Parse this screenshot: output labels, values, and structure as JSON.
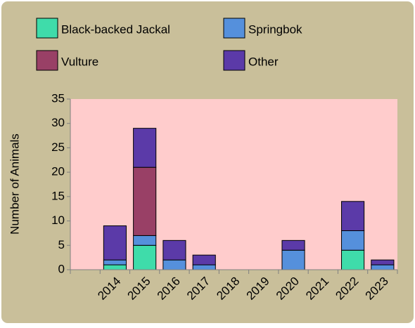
{
  "chart_data": {
    "type": "stacked_bar",
    "y_label": "Number of Animals",
    "categories": [
      null,
      "2014",
      "2015",
      "2016",
      "2017",
      "2018",
      "2019",
      "2020",
      "2021",
      "2022",
      "2023"
    ],
    "series": [
      {
        "name": "Black-backed Jackal",
        "color": "#3fdcaa",
        "values": [
          0,
          1,
          5,
          0,
          0,
          0,
          0,
          0,
          0,
          4,
          0
        ]
      },
      {
        "name": "Springbok",
        "color": "#5590dc",
        "values": [
          0,
          1,
          2,
          2,
          1,
          0,
          0,
          4,
          0,
          4,
          1
        ]
      },
      {
        "name": "Vulture",
        "color": "#994066",
        "values": [
          0,
          0,
          14,
          0,
          0,
          0,
          0,
          0,
          0,
          0,
          0
        ]
      },
      {
        "name": "Other",
        "color": "#5b3aa8",
        "values": [
          0,
          7,
          8,
          4,
          2,
          0,
          0,
          2,
          0,
          6,
          1
        ]
      }
    ],
    "ylim": [
      0,
      35
    ],
    "yticks": [
      0,
      5,
      10,
      15,
      20,
      25,
      30,
      35
    ],
    "grid": false,
    "background": "#c9bf9a",
    "plot_background": "#ffcccc"
  }
}
